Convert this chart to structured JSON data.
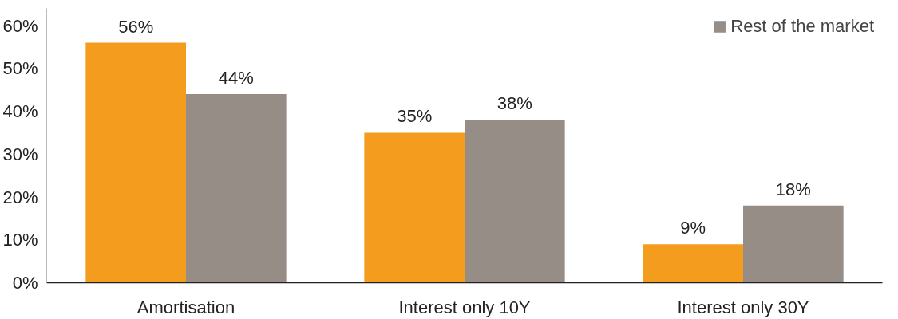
{
  "chart_data": {
    "type": "bar",
    "categories": [
      "Amortisation",
      "Interest only 10Y",
      "Interest only 30Y"
    ],
    "series": [
      {
        "color": "#f39c1e",
        "values": [
          56,
          35,
          9
        ],
        "value_labels": [
          "56%",
          "35%",
          "9%"
        ]
      },
      {
        "name": "Rest of the market",
        "color": "#958d86",
        "values": [
          44,
          38,
          18
        ],
        "value_labels": [
          "44%",
          "38%",
          "18%"
        ]
      }
    ],
    "ylim": [
      0,
      64
    ],
    "yticks": [
      {
        "value": 0,
        "label": "0%"
      },
      {
        "value": 10,
        "label": "10%"
      },
      {
        "value": 20,
        "label": "20%"
      },
      {
        "value": 30,
        "label": "30%"
      },
      {
        "value": 40,
        "label": "40%"
      },
      {
        "value": 50,
        "label": "50%"
      },
      {
        "value": 60,
        "label": "60%"
      }
    ],
    "grid": false,
    "legend": "top right"
  }
}
